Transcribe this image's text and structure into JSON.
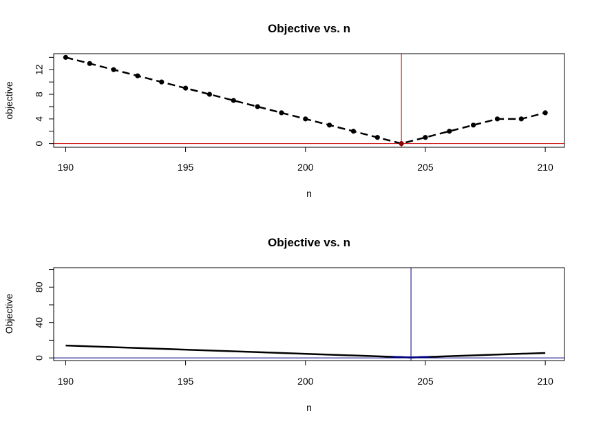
{
  "chart_data": [
    {
      "type": "line",
      "title": "Objective vs. n",
      "xlabel": "n",
      "ylabel": "objective",
      "xlim": [
        189.5,
        210.8
      ],
      "ylim": [
        -0.6,
        14.6
      ],
      "xticks": [
        190,
        195,
        200,
        205,
        210
      ],
      "yticks": [
        0,
        4,
        8,
        12
      ],
      "yticks_minor": [
        2,
        6,
        10,
        14
      ],
      "line_style": "dashed",
      "markers": true,
      "x": [
        190,
        191,
        192,
        193,
        194,
        195,
        196,
        197,
        198,
        199,
        200,
        201,
        202,
        203,
        204,
        205,
        206,
        207,
        208,
        209,
        210
      ],
      "y": [
        14,
        13,
        12,
        11,
        10,
        9,
        8,
        7,
        6,
        5,
        4,
        3,
        2,
        1,
        0,
        1,
        2,
        3,
        4,
        4,
        5
      ],
      "highlight": {
        "x": 204,
        "y": 0,
        "color": "#8b0000"
      },
      "vline": {
        "x": 204,
        "color": "#cc0000"
      },
      "hline": {
        "y": 0,
        "color": "#cc0000"
      }
    },
    {
      "type": "line",
      "title": "Objective vs. n",
      "xlabel": "n",
      "ylabel": "Objective",
      "xlim": [
        189.5,
        210.8
      ],
      "ylim": [
        -3,
        102
      ],
      "xticks": [
        190,
        195,
        200,
        205,
        210
      ],
      "yticks": [
        0,
        40,
        80
      ],
      "yticks_minor": [
        20,
        60,
        100
      ],
      "line_style": "solid",
      "markers": false,
      "x": [
        190,
        204.4,
        210
      ],
      "y": [
        14,
        0.5,
        5.6
      ],
      "min_segment_color": "#000080",
      "vline": {
        "x": 204.4,
        "color": "#000080"
      },
      "hline": {
        "y": 0,
        "color": "#000080"
      }
    }
  ]
}
